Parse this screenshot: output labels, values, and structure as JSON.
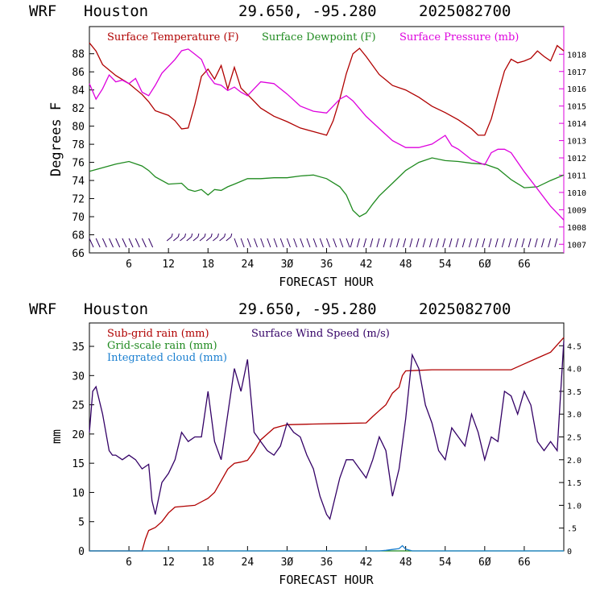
{
  "chart_data": [
    {
      "type": "line",
      "header": {
        "model": "WRF",
        "location": "Houston",
        "coords": "29.650, -95.280",
        "init": "2025082700"
      },
      "xlabel": "FORECAST HOUR",
      "ylabel": "Degrees F",
      "xlim": [
        0,
        72
      ],
      "xticks": [
        6,
        12,
        18,
        24,
        30,
        36,
        42,
        48,
        54,
        60,
        66
      ],
      "ylim": [
        66,
        91
      ],
      "yticks": [
        66,
        68,
        70,
        72,
        74,
        76,
        78,
        80,
        82,
        84,
        86,
        88
      ],
      "y2lim": [
        1006.5,
        1019.6
      ],
      "y2ticks": [
        1007,
        1008,
        1009,
        1010,
        1011,
        1012,
        1013,
        1014,
        1015,
        1016,
        1017,
        1018
      ],
      "colors": {
        "temp": "#b00000",
        "dew": "#1f8a1f",
        "pres": "#dd00dd",
        "wind": "#330066"
      },
      "series": [
        {
          "name": "Surface Temperature (F)",
          "key": "temp",
          "axis": "left",
          "x": [
            0,
            1,
            2,
            4,
            6,
            8,
            9,
            10,
            12,
            13,
            14,
            15,
            16,
            17,
            18,
            19,
            20,
            21,
            22,
            23,
            24,
            26,
            28,
            30,
            32,
            34,
            36,
            37,
            38,
            39,
            40,
            41,
            42,
            44,
            45,
            46,
            48,
            50,
            52,
            54,
            56,
            58,
            59,
            60,
            61,
            62,
            63,
            64,
            65,
            66,
            67,
            68,
            69,
            70,
            71,
            72
          ],
          "y": [
            89.2,
            88.3,
            86.8,
            85.6,
            84.7,
            83.5,
            82.7,
            81.7,
            81.2,
            80.6,
            79.7,
            79.8,
            82.4,
            85.5,
            86.3,
            85.2,
            86.7,
            84.1,
            86.5,
            84.2,
            83.5,
            82.0,
            81.1,
            80.5,
            79.8,
            79.4,
            79.0,
            80.6,
            83.0,
            85.8,
            88.0,
            88.6,
            87.7,
            85.7,
            85.1,
            84.5,
            84.0,
            83.2,
            82.2,
            81.5,
            80.7,
            79.7,
            79.0,
            79.0,
            80.8,
            83.5,
            86.1,
            87.4,
            87.0,
            87.2,
            87.5,
            88.3,
            87.7,
            87.2,
            88.9,
            88.3
          ]
        },
        {
          "name": "Surface Dewpoint (F)",
          "key": "dew",
          "axis": "left",
          "x": [
            0,
            2,
            4,
            6,
            8,
            9,
            10,
            12,
            14,
            15,
            16,
            17,
            18,
            19,
            20,
            21,
            22,
            24,
            26,
            28,
            30,
            32,
            34,
            36,
            38,
            39,
            40,
            41,
            42,
            43,
            44,
            46,
            48,
            50,
            52,
            54,
            56,
            58,
            60,
            62,
            64,
            66,
            68,
            70,
            72
          ],
          "y": [
            75.0,
            75.4,
            75.8,
            76.1,
            75.6,
            75.1,
            74.4,
            73.6,
            73.7,
            73.0,
            72.8,
            73.0,
            72.4,
            73.0,
            72.9,
            73.3,
            73.6,
            74.2,
            74.2,
            74.3,
            74.3,
            74.5,
            74.6,
            74.2,
            73.3,
            72.4,
            70.7,
            70.0,
            70.4,
            71.4,
            72.3,
            73.7,
            75.1,
            76.0,
            76.5,
            76.2,
            76.1,
            75.9,
            75.8,
            75.3,
            74.1,
            73.2,
            73.3,
            74.0,
            74.6
          ]
        },
        {
          "name": "Surface Pressure (mb)",
          "key": "pres",
          "axis": "right",
          "x": [
            0,
            1,
            2,
            3,
            4,
            5,
            6,
            7,
            8,
            9,
            10,
            11,
            12,
            13,
            14,
            15,
            16,
            17,
            18,
            19,
            20,
            21,
            22,
            23,
            24,
            25,
            26,
            28,
            30,
            32,
            34,
            36,
            38,
            39,
            40,
            42,
            44,
            46,
            48,
            50,
            52,
            54,
            55,
            56,
            58,
            60,
            61,
            62,
            63,
            64,
            66,
            68,
            70,
            72
          ],
          "y": [
            1016.3,
            1015.4,
            1016.0,
            1016.8,
            1016.4,
            1016.5,
            1016.3,
            1016.6,
            1015.8,
            1015.6,
            1016.2,
            1016.9,
            1017.3,
            1017.7,
            1018.2,
            1018.3,
            1018.0,
            1017.7,
            1016.8,
            1016.3,
            1016.2,
            1015.9,
            1016.1,
            1015.8,
            1015.6,
            1016.0,
            1016.4,
            1016.3,
            1015.7,
            1015.0,
            1014.7,
            1014.6,
            1015.4,
            1015.6,
            1015.3,
            1014.4,
            1013.7,
            1013.0,
            1012.6,
            1012.6,
            1012.8,
            1013.3,
            1012.7,
            1012.5,
            1011.9,
            1011.6,
            1012.3,
            1012.5,
            1012.5,
            1012.3,
            1011.2,
            1010.2,
            1009.2,
            1008.4
          ]
        }
      ],
      "wind_barbs": "series of wind barbs along the bottom of the temperature panel"
    },
    {
      "type": "line",
      "header": {
        "model": "WRF",
        "location": "Houston",
        "coords": "29.650, -95.280",
        "init": "2025082700"
      },
      "xlabel": "FORECAST HOUR",
      "ylabel": "mm",
      "xlim": [
        0,
        72
      ],
      "xticks": [
        6,
        12,
        18,
        24,
        30,
        36,
        42,
        48,
        54,
        60,
        66
      ],
      "ylim": [
        0,
        39
      ],
      "yticks": [
        0,
        5,
        10,
        15,
        20,
        25,
        30,
        35
      ],
      "y2lim": [
        0,
        5.0
      ],
      "y2ticks": [
        0,
        0.5,
        1.0,
        1.5,
        2.0,
        2.5,
        3.0,
        3.5,
        4.0,
        4.5
      ],
      "y2ticklabels": [
        "0",
        ".5",
        "1.0",
        "1.5",
        "2.0",
        "2.5",
        "3.0",
        "3.5",
        "4.0",
        "4.5"
      ],
      "colors": {
        "subgrid": "#b00000",
        "gridscale": "#1f8a1f",
        "cloud": "#1a7fd0",
        "wind": "#330066"
      },
      "series": [
        {
          "name": "Sub-grid rain (mm)",
          "key": "subgrid",
          "axis": "left",
          "x": [
            0,
            8,
            8.5,
            9,
            10,
            11,
            12,
            13,
            16,
            18,
            19,
            20,
            21,
            22,
            23,
            24,
            25,
            26,
            27,
            28,
            29,
            30,
            34,
            38,
            42,
            43,
            44,
            45,
            46,
            47,
            47.5,
            48,
            52,
            56,
            60,
            64,
            66,
            68,
            70,
            72
          ],
          "y": [
            0,
            0,
            2,
            3.5,
            4,
            5,
            6.5,
            7.5,
            7.8,
            9,
            10,
            12,
            14,
            15,
            15.2,
            15.5,
            17,
            19,
            20,
            21,
            21.3,
            21.6,
            21.7,
            21.8,
            21.9,
            23,
            24,
            25,
            27,
            28,
            30,
            30.8,
            31,
            31,
            31,
            31,
            32,
            33,
            34,
            36.5
          ]
        },
        {
          "name": "Grid-scale rain (mm)",
          "key": "gridscale",
          "axis": "left",
          "x": [
            0,
            72
          ],
          "y": [
            0,
            0
          ]
        },
        {
          "name": "Integrated cloud (mm)",
          "key": "cloud",
          "axis": "left",
          "x": [
            0,
            44,
            45,
            46,
            47,
            47.5,
            48,
            49,
            72
          ],
          "y": [
            0,
            0,
            0.1,
            0.25,
            0.4,
            0.9,
            0.3,
            0,
            0
          ]
        },
        {
          "name": "Surface Wind Speed (m/s)",
          "key": "wind",
          "axis": "right",
          "x": [
            0,
            0.5,
            1,
            2,
            3,
            3.5,
            4,
            5,
            6,
            7,
            8,
            9,
            9.5,
            10,
            11,
            12,
            13,
            14,
            15,
            16,
            17,
            18,
            19,
            20,
            21,
            22,
            23,
            24,
            25,
            26,
            27,
            28,
            29,
            30,
            31,
            32,
            33,
            34,
            35,
            36,
            36.5,
            37,
            38,
            39,
            40,
            41,
            42,
            43,
            44,
            45,
            46,
            47,
            48,
            49,
            50,
            51,
            52,
            53,
            54,
            55,
            56,
            57,
            58,
            59,
            60,
            61,
            62,
            63,
            64,
            65,
            66,
            67,
            68,
            69,
            70,
            71,
            72
          ],
          "y": [
            2.6,
            3.5,
            3.6,
            3.0,
            2.2,
            2.1,
            2.1,
            2.0,
            2.1,
            2.0,
            1.8,
            1.9,
            1.1,
            0.8,
            1.5,
            1.7,
            2.0,
            2.6,
            2.4,
            2.5,
            2.5,
            3.5,
            2.4,
            2.0,
            3.0,
            4.0,
            3.5,
            4.2,
            2.6,
            2.4,
            2.2,
            2.1,
            2.3,
            2.8,
            2.6,
            2.5,
            2.1,
            1.8,
            1.2,
            0.8,
            0.7,
            1.0,
            1.6,
            2.0,
            2.0,
            1.8,
            1.6,
            2.0,
            2.5,
            2.2,
            1.2,
            1.8,
            2.9,
            4.3,
            4.0,
            3.2,
            2.8,
            2.2,
            2.0,
            2.7,
            2.5,
            2.3,
            3.0,
            2.6,
            2.0,
            2.5,
            2.4,
            3.5,
            3.4,
            3.0,
            3.5,
            3.2,
            2.4,
            2.2,
            2.4,
            2.2,
            4.6
          ]
        }
      ]
    }
  ]
}
